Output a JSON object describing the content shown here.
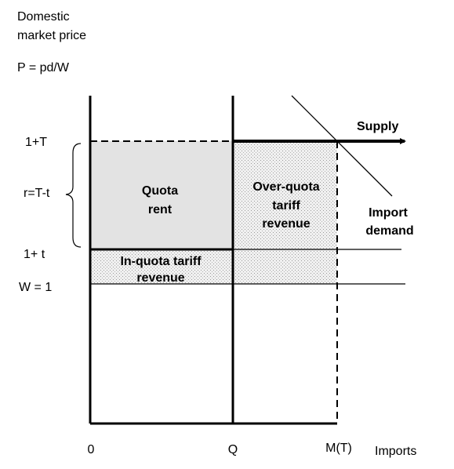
{
  "axis": {
    "y_title": [
      "Domestic",
      "market price"
    ],
    "y_formula": "P = pd/W",
    "x_title": "Imports"
  },
  "levels": {
    "upper": "1+T",
    "lower": "1+ t",
    "world": "W = 1",
    "gap": "r=T-t"
  },
  "x_marks": {
    "origin": "0",
    "quota": "Q",
    "imports": "M(T)"
  },
  "curves": {
    "supply": "Supply",
    "demand": [
      "Import",
      "demand"
    ]
  },
  "areas": {
    "quota_rent": [
      "Quota",
      "rent"
    ],
    "over_quota": [
      "Over-quota",
      "tariff",
      "revenue"
    ],
    "in_quota": [
      "In-quota tariff",
      "revenue"
    ]
  }
}
